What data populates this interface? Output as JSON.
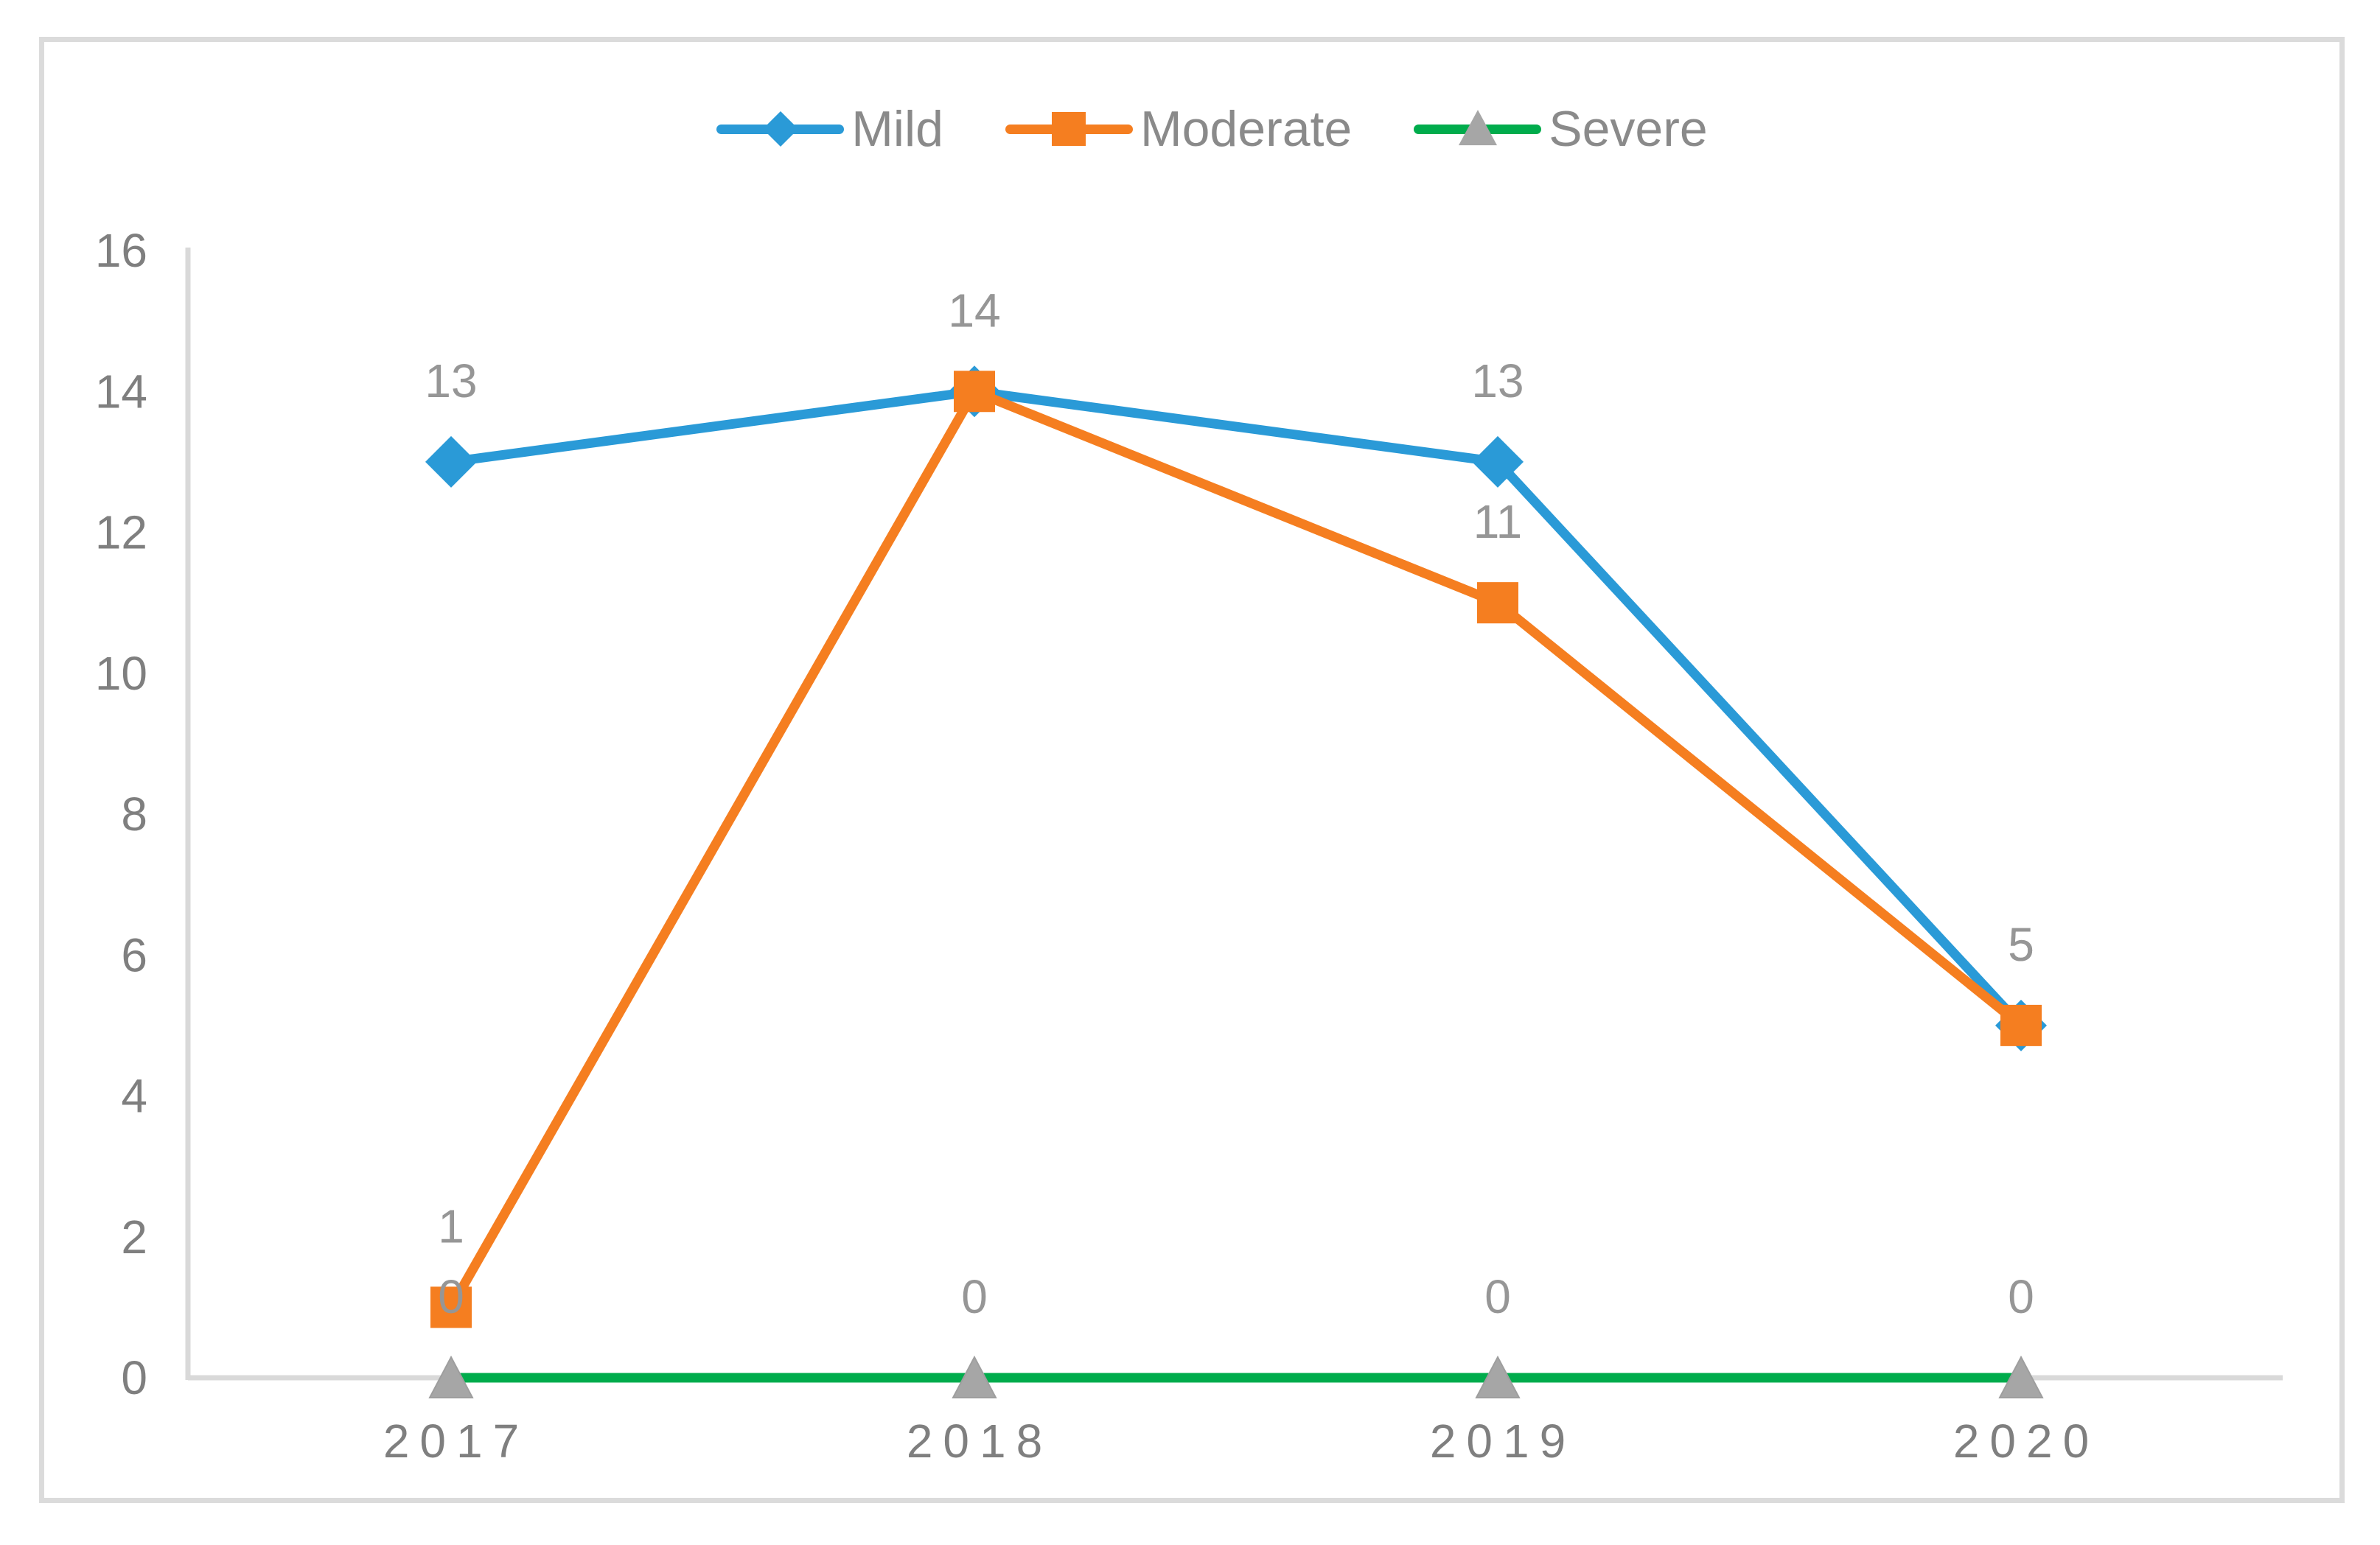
{
  "chart_data": {
    "type": "line",
    "categories": [
      "2017",
      "2018",
      "2019",
      "2020"
    ],
    "series": [
      {
        "name": "Mild",
        "color": "#2a9ad7",
        "marker": "diamond",
        "marker_color": "#2a9ad7",
        "values": [
          13,
          14,
          13,
          5
        ]
      },
      {
        "name": "Moderate",
        "color": "#f57e20",
        "marker": "square",
        "marker_color": "#f57e20",
        "values": [
          1,
          14,
          11,
          5
        ]
      },
      {
        "name": "Severe",
        "color": "#00ac4c",
        "marker": "triangle",
        "marker_color": "#a6a6a6",
        "values": [
          0,
          0,
          0,
          0
        ]
      }
    ],
    "ylim": [
      0,
      16
    ],
    "ytick_step": 2,
    "yticks": [
      "0",
      "2",
      "4",
      "6",
      "8",
      "10",
      "12",
      "14",
      "16"
    ],
    "data_labels_shown": true,
    "grid": false,
    "legend_position": "top",
    "colors": {
      "axis_line": "#d9d9d9",
      "figure_border": "#dbdbdb",
      "tick_label": "#7f7f7f",
      "data_label": "#969696",
      "legend_text": "#8a8a8a",
      "triangle_outline": "#9e9e9e"
    }
  }
}
